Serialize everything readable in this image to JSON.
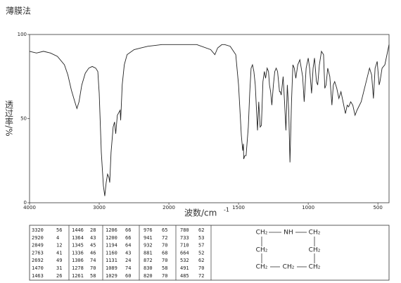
{
  "chart_data": {
    "type": "line",
    "title": "薄膜法",
    "x_label": "波数/cm",
    "x_label_exponent": "-1",
    "y_label": "透过率/%",
    "xlim": [
      4000,
      420
    ],
    "xticks": [
      4000,
      3000,
      2000,
      1500,
      1000,
      500
    ],
    "ylim": [
      0,
      100
    ],
    "yticks": [
      0,
      50,
      100
    ],
    "color": "#222",
    "x": [
      4000,
      3900,
      3800,
      3700,
      3600,
      3500,
      3450,
      3400,
      3350,
      3320,
      3290,
      3250,
      3200,
      3150,
      3100,
      3050,
      3020,
      3000,
      2970,
      2940,
      2920,
      2900,
      2880,
      2860,
      2849,
      2830,
      2800,
      2780,
      2763,
      2740,
      2700,
      2692,
      2670,
      2640,
      2600,
      2500,
      2400,
      2300,
      2200,
      2100,
      2000,
      1900,
      1800,
      1700,
      1670,
      1650,
      1620,
      1600,
      1560,
      1520,
      1500,
      1480,
      1470,
      1465,
      1463,
      1455,
      1446,
      1430,
      1420,
      1410,
      1400,
      1390,
      1380,
      1364,
      1355,
      1345,
      1336,
      1325,
      1315,
      1306,
      1295,
      1285,
      1278,
      1270,
      1261,
      1250,
      1240,
      1230,
      1220,
      1206,
      1200,
      1194,
      1180,
      1170,
      1160,
      1150,
      1140,
      1131,
      1120,
      1110,
      1100,
      1089,
      1075,
      1060,
      1040,
      1029,
      1015,
      1000,
      990,
      976,
      965,
      955,
      941,
      932,
      920,
      905,
      890,
      881,
      872,
      860,
      845,
      830,
      820,
      810,
      795,
      780,
      765,
      750,
      733,
      720,
      710,
      695,
      680,
      664,
      650,
      620,
      590,
      560,
      545,
      532,
      520,
      505,
      491,
      485,
      470,
      450,
      430,
      420
    ],
    "values": [
      90,
      89,
      90,
      89,
      87,
      82,
      76,
      67,
      60,
      56,
      60,
      70,
      77,
      80,
      81,
      80,
      78,
      65,
      30,
      10,
      4,
      12,
      17,
      15,
      12,
      30,
      45,
      48,
      41,
      52,
      55,
      49,
      70,
      82,
      88,
      91,
      92,
      93,
      93.5,
      94,
      94,
      94,
      94,
      91,
      88,
      92,
      94,
      94,
      93,
      88,
      70,
      40,
      31,
      35,
      26,
      28,
      28,
      45,
      65,
      80,
      82,
      78,
      70,
      43,
      60,
      45,
      46,
      72,
      78,
      74,
      80,
      78,
      70,
      66,
      58,
      70,
      78,
      80,
      78,
      66,
      66,
      64,
      75,
      60,
      43,
      70,
      55,
      24,
      60,
      82,
      80,
      74,
      82,
      85,
      75,
      60,
      80,
      86,
      80,
      65,
      80,
      86,
      72,
      70,
      82,
      90,
      88,
      68,
      70,
      80,
      75,
      58,
      70,
      72,
      68,
      62,
      66,
      60,
      53,
      58,
      57,
      60,
      58,
      52,
      55,
      60,
      70,
      80,
      76,
      62,
      80,
      84,
      70,
      72,
      80,
      82,
      90,
      94
    ]
  },
  "peak_table": {
    "rows": [
      [
        3320,
        56,
        1446,
        28,
        1206,
        66,
        976,
        65,
        780,
        62
      ],
      [
        2920,
        4,
        1364,
        43,
        1200,
        66,
        941,
        72,
        733,
        53
      ],
      [
        2849,
        12,
        1345,
        45,
        1194,
        64,
        932,
        70,
        710,
        57
      ],
      [
        2763,
        41,
        1336,
        46,
        1160,
        43,
        881,
        68,
        664,
        52
      ],
      [
        2692,
        49,
        1306,
        74,
        1131,
        24,
        872,
        70,
        532,
        62
      ],
      [
        1470,
        31,
        1278,
        70,
        1089,
        74,
        830,
        58,
        491,
        70
      ],
      [
        1463,
        26,
        1261,
        58,
        1029,
        60,
        820,
        70,
        485,
        72
      ]
    ]
  },
  "structure": {
    "atoms": [
      "CH₂",
      "NH",
      "CH₂",
      "CH₂",
      "CH₂",
      "CH₂",
      "CH₂",
      "CH₂"
    ]
  }
}
